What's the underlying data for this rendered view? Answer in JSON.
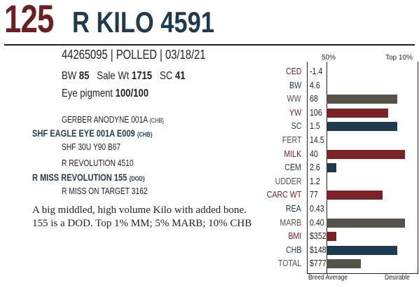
{
  "header": {
    "lot": "125",
    "name": "R KILO 4591"
  },
  "info": {
    "registration": "44265095 | POLLED | 03/18/21",
    "bw_label": "BW",
    "bw": "85",
    "sale_wt_label": "Sale Wt",
    "sale_wt": "1715",
    "sc_label": "SC",
    "sc": "41",
    "eye_label": "Eye pigment",
    "eye": "100/100"
  },
  "pedigree": [
    {
      "name": "GERBER ANODYNE 001A",
      "tag": "{CHB}",
      "bold": false
    },
    {
      "name": "SHF EAGLE EYE 001A E009",
      "tag": "{CHB}",
      "bold": true
    },
    {
      "name": "SHF 30U Y90 B67",
      "tag": "",
      "bold": false
    },
    {
      "name": "R REVOLUTION 4510",
      "tag": "",
      "bold": false
    },
    {
      "name": "R MISS REVOLUTION 155",
      "tag": "{DOD}",
      "bold": true
    },
    {
      "name": "R MISS ON TARGET 3162",
      "tag": "",
      "bold": false
    }
  ],
  "description": "A big middled, high volume Kilo with added bone. 155 is a DOD. Top 1% MM; 5% MARB; 10% CHB",
  "chart": {
    "header_mid": "50%",
    "header_right": "Top 10%",
    "footer_left": "Breed Average",
    "footer_right": "Desirable",
    "colors": {
      "red": "#7a2226",
      "gray": "#55524a",
      "blue": "#1f3a4f"
    }
  },
  "chart_data": {
    "type": "bar",
    "categories": [
      "CED",
      "BW",
      "WW",
      "YW",
      "SC",
      "FERT",
      "MILK",
      "CEM",
      "UDDER",
      "CARC WT",
      "REA",
      "MARB",
      "BMI",
      "CHB",
      "TOTAL"
    ],
    "values": [
      "-1.4",
      "4.6",
      "68",
      "106",
      "1.5",
      "14.5",
      "40",
      "2.6",
      "1.2",
      "77",
      "0.43",
      "0.40",
      "$352",
      "$148",
      "$777"
    ],
    "bar_fraction": [
      0,
      0,
      0.78,
      0.68,
      0.78,
      0,
      0.87,
      0.11,
      0,
      0.62,
      0,
      0.87,
      0.11,
      0.78,
      0.38
    ],
    "label_colors": [
      "red",
      "blue",
      "gray",
      "red",
      "blue",
      "gray",
      "red",
      "blue",
      "gray",
      "red",
      "blue",
      "gray",
      "red",
      "blue",
      "gray"
    ],
    "bar_colors": [
      "red",
      "blue",
      "gray",
      "red",
      "blue",
      "gray",
      "red",
      "blue",
      "gray",
      "red",
      "blue",
      "gray",
      "red",
      "blue",
      "gray"
    ]
  }
}
